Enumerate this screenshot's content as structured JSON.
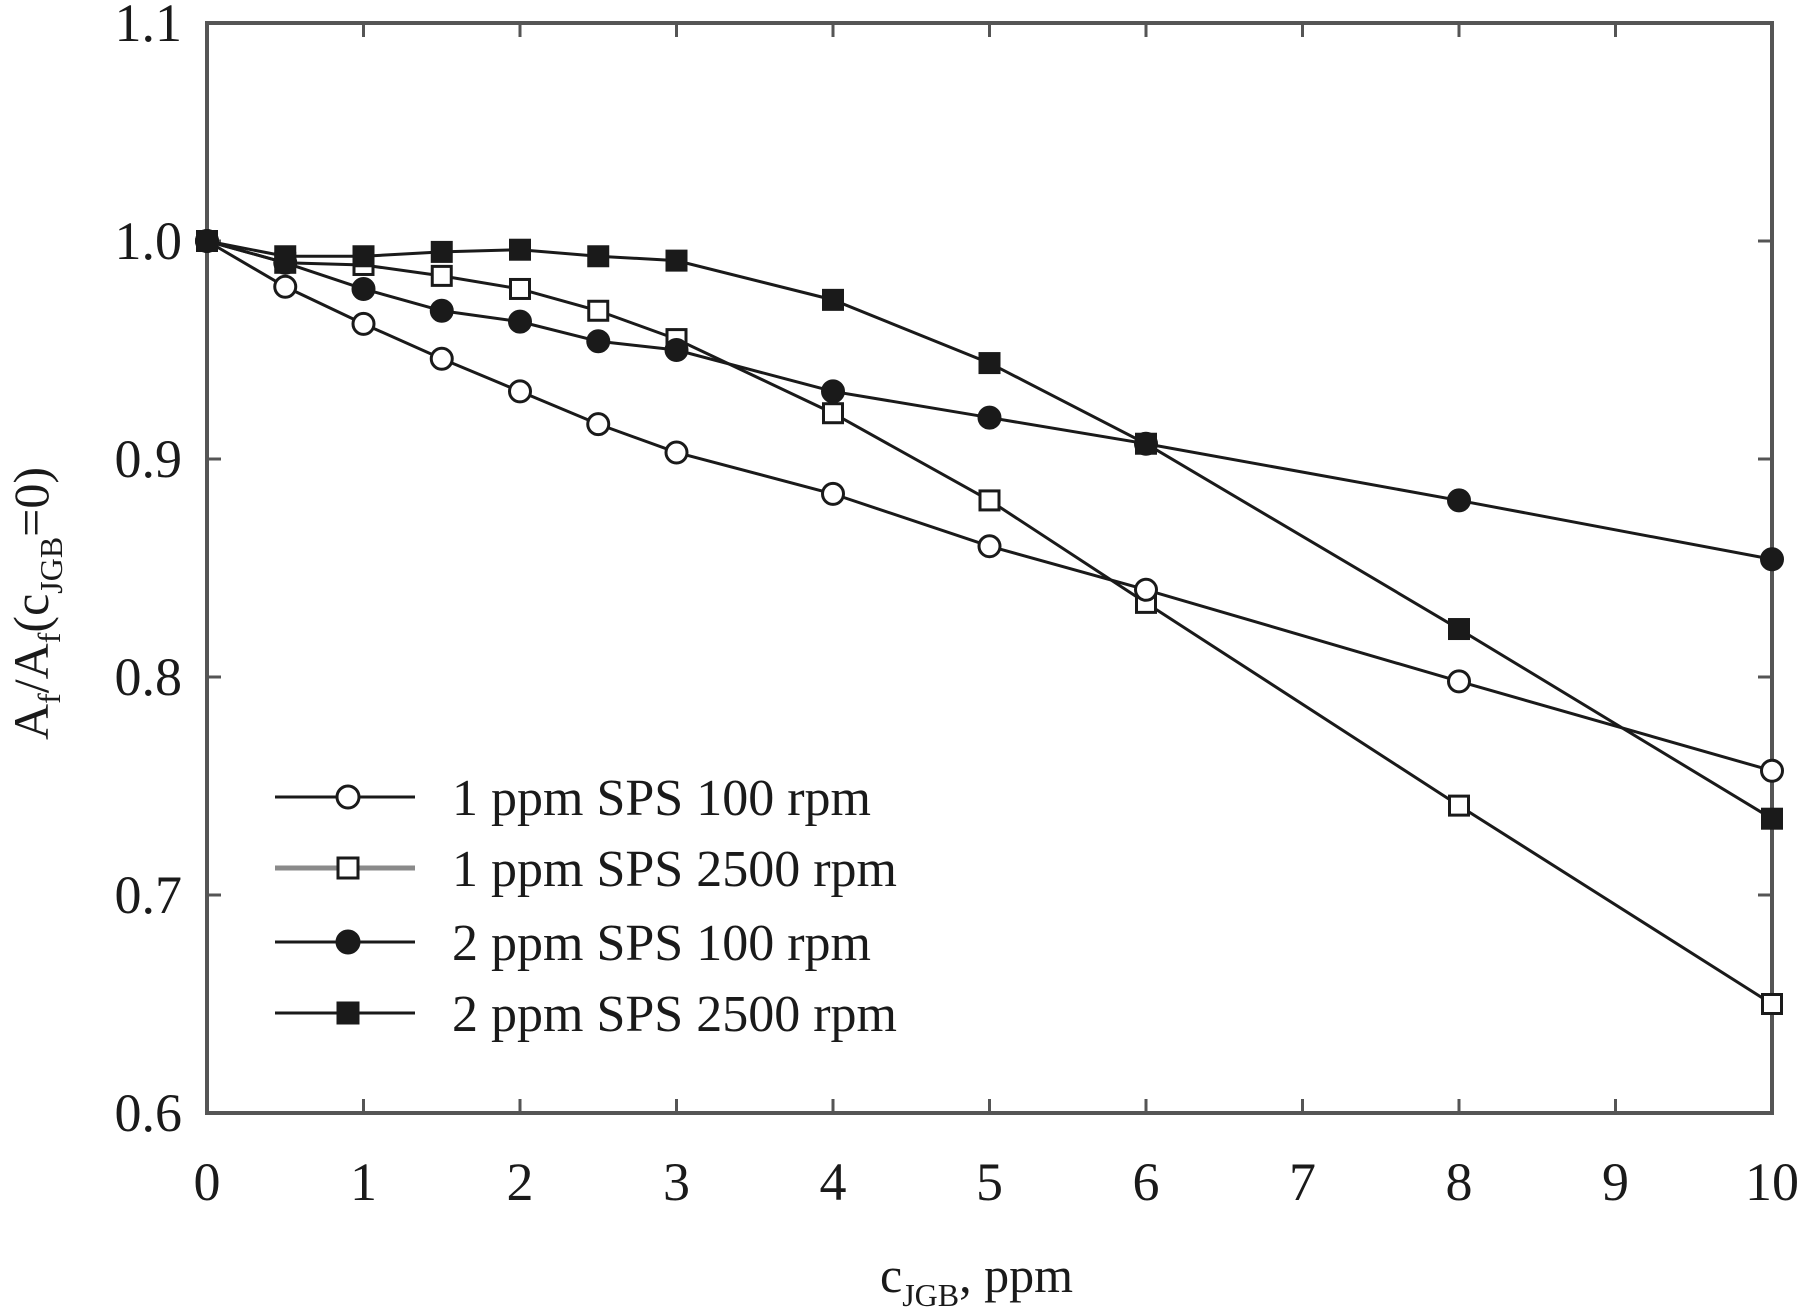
{
  "chart_data": {
    "type": "line",
    "title": "",
    "xlabel": "c_JGB, ppm",
    "xlabel_parts": {
      "main": "c",
      "sub": "JGB",
      "rest": ", ppm"
    },
    "ylabel": "A_f/A_f(c_JGB=0)",
    "ylabel_parts": {
      "a": "A",
      "f1": "f",
      "slash": "/A",
      "f2": "f",
      "open": "(c",
      "sub": "JGB",
      "close": "=0)"
    },
    "xlim": [
      0,
      10
    ],
    "ylim": [
      0.6,
      1.1
    ],
    "xticks": [
      0,
      1,
      2,
      3,
      4,
      5,
      6,
      7,
      8,
      9,
      10
    ],
    "xtick_labels": [
      "0",
      "1",
      "2",
      "3",
      "4",
      "5",
      "6",
      "7",
      "8",
      "9",
      "10"
    ],
    "yticks": [
      0.6,
      0.7,
      0.8,
      0.9,
      1.0,
      1.1
    ],
    "ytick_labels": [
      "0.6",
      "0.7",
      "0.8",
      "0.9",
      "1.0",
      "1.1"
    ],
    "grid": false,
    "legend_position": "lower left",
    "x": [
      0,
      0.5,
      1,
      1.5,
      2,
      2.5,
      3,
      4,
      5,
      6,
      8,
      10
    ],
    "series": [
      {
        "name": "1 ppm SPS 100 rpm",
        "marker": "open-circle",
        "line_color": "#1a1a1a",
        "values": [
          1.0,
          0.979,
          0.962,
          0.946,
          0.931,
          0.916,
          0.903,
          0.884,
          0.86,
          0.84,
          0.798,
          0.757
        ]
      },
      {
        "name": "1 ppm SPS 2500 rpm",
        "marker": "open-square",
        "line_color": "#1a1a1a",
        "legend_line_color": "#8a8a8a",
        "values": [
          1.0,
          0.99,
          0.989,
          0.984,
          0.978,
          0.968,
          0.955,
          0.921,
          0.881,
          0.834,
          0.741,
          0.65
        ]
      },
      {
        "name": "2 ppm SPS 100 rpm",
        "marker": "filled-circle",
        "line_color": "#1a1a1a",
        "values": [
          1.0,
          0.99,
          0.978,
          0.968,
          0.963,
          0.954,
          0.95,
          0.931,
          0.919,
          0.907,
          0.881,
          0.854
        ]
      },
      {
        "name": "2 ppm SPS 2500 rpm",
        "marker": "filled-square",
        "line_color": "#1a1a1a",
        "values": [
          1.0,
          0.993,
          0.993,
          0.995,
          0.996,
          0.993,
          0.991,
          0.973,
          0.944,
          0.907,
          0.822,
          0.735
        ]
      }
    ]
  },
  "legend": {
    "items": [
      {
        "label": "1 ppm SPS 100 rpm"
      },
      {
        "label": "1 ppm SPS 2500 rpm"
      },
      {
        "label": "2 ppm SPS 100 rpm"
      },
      {
        "label": "2 ppm SPS 2500 rpm"
      }
    ]
  },
  "colors": {
    "axis": "#555555",
    "ink": "#1a1a1a",
    "background": "#ffffff"
  }
}
